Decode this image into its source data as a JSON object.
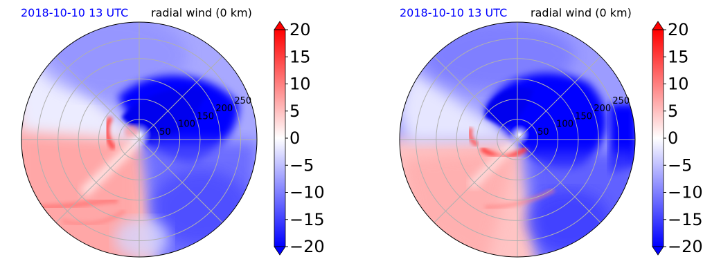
{
  "chart_data": [
    {
      "type": "heatmap",
      "title_left": "2018-10-10 13 UTC",
      "title_right": "radial wind (0 km)",
      "radial_tick_labels": [
        "50",
        "100",
        "150",
        "200",
        "250"
      ],
      "radial_ticks": [
        50,
        100,
        150,
        200,
        250
      ],
      "r_max": 290,
      "colorbar": {
        "ticks": [
          "20",
          "15",
          "10",
          "5",
          "0",
          "−5",
          "−10",
          "−15",
          "−20"
        ],
        "range": [
          -20,
          20
        ],
        "cmap": "bwr",
        "extend": "both"
      },
      "colors": {
        "negative": "#0000ff",
        "positive": "#ff0000",
        "zero": "#ffffff"
      }
    },
    {
      "type": "heatmap",
      "title_left": "2018-10-10 13 UTC",
      "title_right": "radial wind (0 km)",
      "radial_tick_labels": [
        "50",
        "100",
        "150",
        "200",
        "250"
      ],
      "radial_ticks": [
        50,
        100,
        150,
        200,
        250
      ],
      "r_max": 290,
      "colorbar": {
        "ticks": [
          "20",
          "15",
          "10",
          "5",
          "0",
          "−5",
          "−10",
          "−15",
          "−20"
        ],
        "range": [
          -20,
          20
        ],
        "cmap": "bwr",
        "extend": "both"
      },
      "colors": {
        "negative": "#0000ff",
        "positive": "#ff0000",
        "zero": "#ffffff"
      }
    }
  ]
}
